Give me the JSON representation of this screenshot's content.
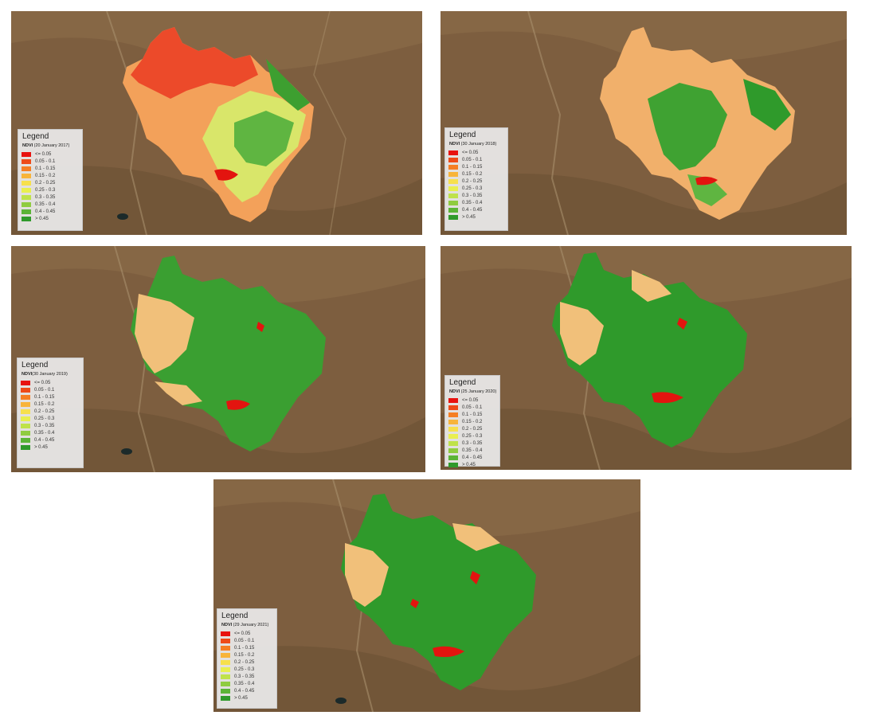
{
  "legend_title": "Legend",
  "legend_classes": [
    {
      "label": "<= 0.05",
      "color": "#e8120f"
    },
    {
      "label": "0.05 - 0.1",
      "color": "#ee4a18"
    },
    {
      "label": "0.1 - 0.15",
      "color": "#f57e23"
    },
    {
      "label": "0.15 - 0.2",
      "color": "#f8b43a"
    },
    {
      "label": "0.2 - 0.25",
      "color": "#f7e04c"
    },
    {
      "label": "0.25 - 0.3",
      "color": "#e9ef4f"
    },
    {
      "label": "0.3 - 0.35",
      "color": "#bfe24a"
    },
    {
      "label": "0.35 - 0.4",
      "color": "#8fcc3f"
    },
    {
      "label": "0.4 - 0.45",
      "color": "#5bb436"
    },
    {
      "label": "> 0.45",
      "color": "#2f9a2b"
    }
  ],
  "maps": [
    {
      "index_label": "NDVI",
      "date": "(20 January 2017)",
      "dominant": "red-orange"
    },
    {
      "index_label": "NDVI",
      "date": "(30 January 2018)",
      "dominant": "orange-green"
    },
    {
      "index_label": "NDVI",
      "date": "(30 January 2019)",
      "dominant": "green"
    },
    {
      "index_label": "NDVI",
      "date": "(25 January 2020)",
      "dominant": "green"
    },
    {
      "index_label": "NDVI",
      "date": "(29 January 2021)",
      "dominant": "green"
    }
  ]
}
